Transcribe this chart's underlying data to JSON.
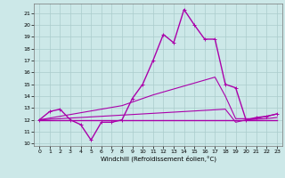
{
  "xlabel": "Windchill (Refroidissement éolien,°C)",
  "xlim": [
    -0.5,
    23.5
  ],
  "ylim": [
    9.8,
    21.8
  ],
  "yticks": [
    10,
    11,
    12,
    13,
    14,
    15,
    16,
    17,
    18,
    19,
    20,
    21
  ],
  "xticks": [
    0,
    1,
    2,
    3,
    4,
    5,
    6,
    7,
    8,
    9,
    10,
    11,
    12,
    13,
    14,
    15,
    16,
    17,
    18,
    19,
    20,
    21,
    22,
    23
  ],
  "bg_color": "#cce8e8",
  "grid_color": "#aacccc",
  "line_color": "#aa00aa",
  "lines": [
    {
      "x": [
        0,
        1,
        2,
        3,
        4,
        5,
        6,
        7,
        8,
        9,
        10,
        11,
        12,
        13,
        14,
        15,
        16,
        17,
        18,
        19,
        20,
        21,
        22,
        23
      ],
      "y": [
        12.0,
        12.7,
        12.9,
        12.0,
        11.6,
        10.3,
        11.8,
        11.8,
        12.0,
        13.8,
        15.0,
        17.0,
        19.2,
        18.5,
        21.3,
        20.0,
        18.8,
        18.8,
        15.0,
        14.7,
        12.0,
        12.2,
        12.3,
        12.5
      ],
      "marker": "+",
      "lw": 1.0
    },
    {
      "x": [
        0,
        23
      ],
      "y": [
        12.0,
        12.0
      ],
      "marker": null,
      "lw": 1.0
    },
    {
      "x": [
        0,
        1,
        2,
        3,
        4,
        5,
        6,
        7,
        8,
        9,
        10,
        11,
        12,
        13,
        14,
        15,
        16,
        17,
        18,
        19,
        20,
        21,
        22,
        23
      ],
      "y": [
        12.0,
        12.15,
        12.3,
        12.45,
        12.6,
        12.75,
        12.9,
        13.05,
        13.2,
        13.5,
        13.8,
        14.1,
        14.35,
        14.6,
        14.85,
        15.1,
        15.35,
        15.6,
        14.0,
        12.1,
        12.1,
        12.1,
        12.3,
        12.5
      ],
      "marker": null,
      "lw": 0.8
    },
    {
      "x": [
        0,
        1,
        2,
        3,
        4,
        5,
        6,
        7,
        8,
        9,
        10,
        11,
        12,
        13,
        14,
        15,
        16,
        17,
        18,
        19,
        20,
        21,
        22,
        23
      ],
      "y": [
        12.0,
        12.05,
        12.1,
        12.15,
        12.2,
        12.25,
        12.3,
        12.35,
        12.4,
        12.45,
        12.5,
        12.55,
        12.6,
        12.65,
        12.7,
        12.75,
        12.8,
        12.85,
        12.9,
        11.8,
        12.0,
        12.05,
        12.1,
        12.2
      ],
      "marker": null,
      "lw": 0.8
    }
  ]
}
